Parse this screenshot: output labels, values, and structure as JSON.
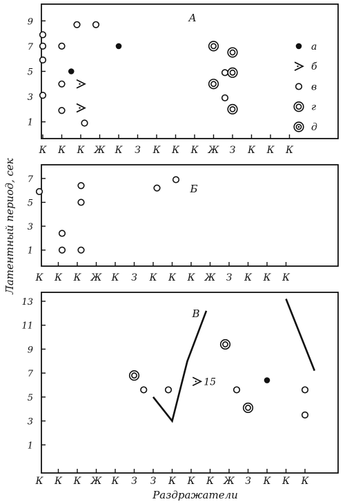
{
  "figure": {
    "y_axis_label": "Латентный период, сек",
    "x_axis_label": "Раздражатели"
  },
  "chart_data": [
    {
      "panel_label": "А",
      "type": "scatter",
      "y_ticks": [
        "1",
        "3",
        "5",
        "7",
        "9"
      ],
      "ylim": [
        0,
        10
      ],
      "x_categories": [
        "К",
        "К",
        "К",
        "Ж",
        "К",
        "З",
        "К",
        "К",
        "К",
        "Ж",
        "З",
        "К",
        "К",
        "К"
      ],
      "legend": [
        {
          "symbol": "filled",
          "label": "а"
        },
        {
          "symbol": "arrow",
          "label": "б"
        },
        {
          "symbol": "open",
          "label": "в"
        },
        {
          "symbol": "double",
          "label": "г"
        },
        {
          "symbol": "dot-ring",
          "label": "д"
        }
      ],
      "points": [
        {
          "x": 0.0,
          "y": 7.9,
          "symbol": "open"
        },
        {
          "x": 0.0,
          "y": 7.0,
          "symbol": "open"
        },
        {
          "x": 0.0,
          "y": 5.9,
          "symbol": "open"
        },
        {
          "x": 0.0,
          "y": 3.1,
          "symbol": "open"
        },
        {
          "x": 1.0,
          "y": 7.0,
          "symbol": "open"
        },
        {
          "x": 1.0,
          "y": 4.0,
          "symbol": "open"
        },
        {
          "x": 1.0,
          "y": 1.9,
          "symbol": "open"
        },
        {
          "x": 1.5,
          "y": 5.0,
          "symbol": "filled"
        },
        {
          "x": 1.8,
          "y": 8.7,
          "symbol": "open"
        },
        {
          "x": 2.0,
          "y": 4.0,
          "symbol": "arrow"
        },
        {
          "x": 2.0,
          "y": 2.1,
          "symbol": "arrow"
        },
        {
          "x": 2.2,
          "y": 0.9,
          "symbol": "open"
        },
        {
          "x": 2.8,
          "y": 8.7,
          "symbol": "open"
        },
        {
          "x": 4.0,
          "y": 7.0,
          "symbol": "filled"
        },
        {
          "x": 9.0,
          "y": 7.0,
          "symbol": "double"
        },
        {
          "x": 9.0,
          "y": 4.0,
          "symbol": "double"
        },
        {
          "x": 9.6,
          "y": 4.9,
          "symbol": "open"
        },
        {
          "x": 9.6,
          "y": 2.9,
          "symbol": "open"
        },
        {
          "x": 10.0,
          "y": 6.5,
          "symbol": "double"
        },
        {
          "x": 10.0,
          "y": 4.9,
          "symbol": "double"
        },
        {
          "x": 10.0,
          "y": 2.0,
          "symbol": "double"
        }
      ]
    },
    {
      "panel_label": "Б",
      "type": "scatter",
      "y_ticks": [
        "1",
        "3",
        "5",
        "7"
      ],
      "ylim": [
        0,
        7.8
      ],
      "x_categories": [
        "К",
        "К",
        "К",
        "Ж",
        "К",
        "З",
        "К",
        "К",
        "К",
        "Ж",
        "З",
        "К",
        "К",
        "К"
      ],
      "points": [
        {
          "x": 0.0,
          "y": 5.9,
          "symbol": "open"
        },
        {
          "x": 1.2,
          "y": 2.4,
          "symbol": "open"
        },
        {
          "x": 1.2,
          "y": 1.0,
          "symbol": "open"
        },
        {
          "x": 2.2,
          "y": 6.4,
          "symbol": "open"
        },
        {
          "x": 2.2,
          "y": 5.0,
          "symbol": "open"
        },
        {
          "x": 2.2,
          "y": 1.0,
          "symbol": "open"
        },
        {
          "x": 6.2,
          "y": 6.2,
          "symbol": "open"
        },
        {
          "x": 7.2,
          "y": 6.9,
          "symbol": "open"
        }
      ]
    },
    {
      "panel_label": "В",
      "type": "scatter",
      "y_ticks": [
        "1",
        "3",
        "5",
        "7",
        "9",
        "11",
        "13"
      ],
      "ylim": [
        -1,
        13.4
      ],
      "x_categories": [
        "К",
        "К",
        "К",
        "Ж",
        "К",
        "З",
        "З",
        "К",
        "К",
        "К",
        "Ж",
        "З",
        "К",
        "К",
        "К"
      ],
      "annotation": "> 15",
      "points": [
        {
          "x": 5.0,
          "y": 6.8,
          "symbol": "double"
        },
        {
          "x": 5.5,
          "y": 5.6,
          "symbol": "open"
        },
        {
          "x": 6.8,
          "y": 5.6,
          "symbol": "open"
        },
        {
          "x": 9.8,
          "y": 9.4,
          "symbol": "double"
        },
        {
          "x": 10.4,
          "y": 5.6,
          "symbol": "open"
        },
        {
          "x": 11.0,
          "y": 4.1,
          "symbol": "double"
        },
        {
          "x": 12.0,
          "y": 6.4,
          "symbol": "filled"
        },
        {
          "x": 14.0,
          "y": 5.6,
          "symbol": "open"
        },
        {
          "x": 14.0,
          "y": 3.5,
          "symbol": "open"
        }
      ],
      "lines": [
        [
          [
            6.0,
            5.0
          ],
          [
            7.0,
            3.0
          ],
          [
            7.8,
            8.0
          ],
          [
            8.8,
            12.2
          ]
        ],
        [
          [
            13.0,
            13.2
          ],
          [
            14.5,
            7.2
          ]
        ]
      ]
    }
  ]
}
